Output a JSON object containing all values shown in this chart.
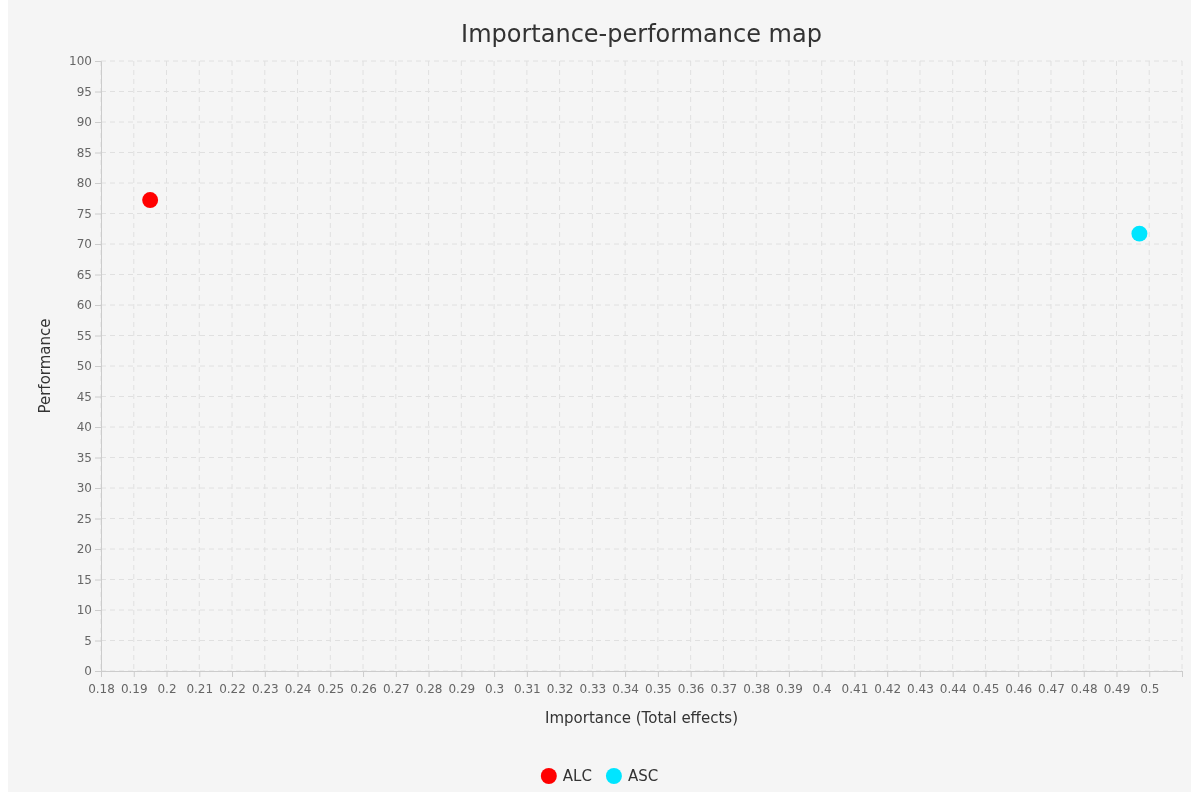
{
  "chart_data": {
    "type": "scatter",
    "title": "Importance-performance map",
    "xlabel": "Importance (Total effects)",
    "ylabel": "Performance",
    "series": [
      {
        "name": "ALC",
        "color": "#ff0000",
        "x": [
          0.195
        ],
        "values": [
          77.2
        ]
      },
      {
        "name": "ASC",
        "color": "#00e5ff",
        "x": [
          0.497
        ],
        "values": [
          71.7
        ]
      }
    ],
    "xlim": [
      0.18,
      0.51
    ],
    "xticks": [
      0.18,
      0.19,
      {
        "value": 0.2,
        "label": "0.2"
      },
      0.21,
      0.22,
      0.23,
      0.24,
      0.25,
      0.26,
      0.27,
      0.28,
      0.29,
      {
        "value": 0.3,
        "label": "0.3"
      },
      0.31,
      0.32,
      0.33,
      0.34,
      0.35,
      0.36,
      0.37,
      0.38,
      0.39,
      {
        "value": 0.4,
        "label": "0.4"
      },
      0.41,
      0.42,
      0.43,
      0.44,
      0.45,
      0.46,
      0.47,
      0.48,
      0.49,
      {
        "value": 0.5,
        "label": "0.5"
      },
      {
        "value": 0.51,
        "label": null
      }
    ],
    "ylim": [
      0,
      100
    ],
    "yticks": [
      0,
      5,
      10,
      15,
      20,
      25,
      30,
      35,
      40,
      45,
      50,
      55,
      60,
      65,
      70,
      75,
      80,
      85,
      90,
      95,
      100
    ],
    "grid": true,
    "legend": "bottom",
    "marker": "circle"
  }
}
